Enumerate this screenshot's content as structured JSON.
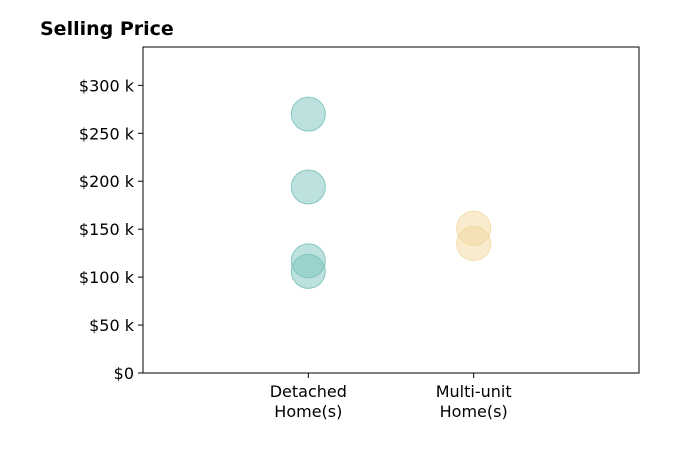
{
  "chart_data": {
    "type": "scatter",
    "title": "Selling Price",
    "xlabel": "",
    "ylabel": "",
    "categories": [
      [
        "Detached",
        "Home(s)"
      ],
      [
        "Multi-unit",
        "Home(s)"
      ]
    ],
    "xlim": [
      -1,
      2
    ],
    "ylim": [
      0,
      340000
    ],
    "yticks": [
      {
        "value": 0,
        "label": "$0"
      },
      {
        "value": 50000,
        "label": "$50 k"
      },
      {
        "value": 100000,
        "label": "$100 k"
      },
      {
        "value": 150000,
        "label": "$150 k"
      },
      {
        "value": 200000,
        "label": "$200 k"
      },
      {
        "value": 250000,
        "label": "$250 k"
      },
      {
        "value": 300000,
        "label": "$300 k"
      }
    ],
    "grid": false,
    "series": [
      {
        "category": 0,
        "color": "#7cc4bd",
        "values": [
          270000,
          194000,
          117000,
          106000
        ]
      },
      {
        "category": 1,
        "color": "#f2d89e",
        "values": [
          151000,
          135000
        ]
      }
    ],
    "marker_alpha": 0.5
  }
}
